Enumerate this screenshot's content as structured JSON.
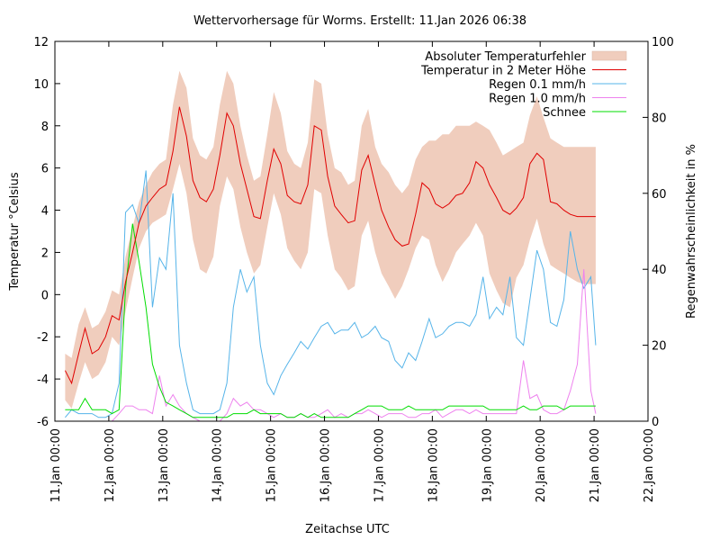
{
  "chart_data": {
    "type": "line",
    "title": "Wettervorhersage für Worms. Erstellt: 11.Jan 2026 06:38",
    "xlabel": "Zeitachse UTC",
    "ylabel": "Temperatur °Celsius",
    "y2label": "Regenwahrscheinlichkeit in %",
    "x_unit": "days since 11.Jan 00:00",
    "xlim": [
      0,
      11
    ],
    "ylim": [
      -6,
      12
    ],
    "y2lim": [
      0,
      100
    ],
    "xticks": [
      {
        "value": 0,
        "label": "11.Jan 00:00"
      },
      {
        "value": 1,
        "label": "12.Jan 00:00"
      },
      {
        "value": 2,
        "label": "13.Jan 00:00"
      },
      {
        "value": 3,
        "label": "14.Jan 00:00"
      },
      {
        "value": 4,
        "label": "15.Jan 00:00"
      },
      {
        "value": 5,
        "label": "16.Jan 00:00"
      },
      {
        "value": 6,
        "label": "17.Jan 00:00"
      },
      {
        "value": 7,
        "label": "18.Jan 00:00"
      },
      {
        "value": 8,
        "label": "19.Jan 00:00"
      },
      {
        "value": 9,
        "label": "20.Jan 00:00"
      },
      {
        "value": 10,
        "label": "21.Jan 00:00"
      },
      {
        "value": 11,
        "label": "22.Jan 00:00"
      }
    ],
    "yticks": [
      -6,
      -4,
      -2,
      0,
      2,
      4,
      6,
      8,
      10,
      12
    ],
    "y2ticks": [
      0,
      20,
      40,
      60,
      80,
      100
    ],
    "grid": false,
    "legend_position": "top-right",
    "legend": [
      {
        "label": "Absoluter Temperaturfehler",
        "kind": "band",
        "color": "#f0cdbd"
      },
      {
        "label": "Temperatur in 2 Meter Höhe",
        "kind": "line",
        "color": "#e00000"
      },
      {
        "label": "Regen 0.1 mm/h",
        "kind": "line",
        "color": "#56b4e9"
      },
      {
        "label": "Regen 1.0 mm/h",
        "kind": "line",
        "color": "#ee82ee"
      },
      {
        "label": "Schnee",
        "kind": "line",
        "color": "#00dd00"
      }
    ],
    "x": [
      0.19,
      0.31,
      0.44,
      0.56,
      0.69,
      0.81,
      0.94,
      1.06,
      1.19,
      1.31,
      1.44,
      1.56,
      1.69,
      1.81,
      1.94,
      2.06,
      2.19,
      2.31,
      2.44,
      2.56,
      2.69,
      2.81,
      2.94,
      3.06,
      3.19,
      3.31,
      3.44,
      3.56,
      3.69,
      3.81,
      3.94,
      4.06,
      4.19,
      4.31,
      4.44,
      4.56,
      4.69,
      4.81,
      4.94,
      5.06,
      5.19,
      5.31,
      5.44,
      5.56,
      5.69,
      5.81,
      5.94,
      6.06,
      6.19,
      6.31,
      6.44,
      6.56,
      6.69,
      6.81,
      6.94,
      7.06,
      7.19,
      7.31,
      7.44,
      7.56,
      7.69,
      7.81,
      7.94,
      8.06,
      8.19,
      8.31,
      8.44,
      8.56,
      8.69,
      8.81,
      8.94,
      9.06,
      9.19,
      9.31,
      9.44,
      9.56,
      9.69,
      9.81,
      9.94,
      10.03
    ],
    "series": [
      {
        "name": "Temperatur in 2 Meter Höhe",
        "axis": "y",
        "color": "#e00000",
        "values": [
          -3.6,
          -4.2,
          -2.8,
          -1.6,
          -2.8,
          -2.6,
          -2.0,
          -1.0,
          -1.2,
          0.6,
          2.0,
          3.4,
          4.2,
          4.6,
          5.0,
          5.2,
          6.8,
          8.9,
          7.5,
          5.4,
          4.6,
          4.4,
          5.0,
          6.6,
          8.6,
          8.0,
          6.2,
          5.0,
          3.7,
          3.6,
          5.4,
          6.9,
          6.2,
          4.7,
          4.4,
          4.3,
          5.2,
          8.0,
          7.8,
          5.6,
          4.2,
          3.8,
          3.4,
          3.5,
          5.9,
          6.6,
          5.2,
          4.0,
          3.2,
          2.6,
          2.3,
          2.4,
          3.8,
          5.3,
          5.0,
          4.3,
          4.1,
          4.3,
          4.7,
          4.8,
          5.3,
          6.3,
          6.0,
          5.2,
          4.6,
          4.0,
          3.8,
          4.1,
          4.6,
          6.2,
          6.7,
          6.4,
          4.4,
          4.3,
          4.0,
          3.8,
          3.7,
          3.7,
          3.7,
          3.7
        ]
      },
      {
        "name": "Absoluter Temperaturfehler (untere Grenze)",
        "axis": "y",
        "color": "#f0cdbd",
        "values": [
          -5.0,
          -5.4,
          -4.2,
          -3.2,
          -4.0,
          -3.8,
          -3.2,
          -2.0,
          -2.4,
          -0.8,
          0.8,
          2.2,
          3.0,
          3.4,
          3.6,
          3.8,
          5.0,
          6.2,
          4.8,
          2.6,
          1.2,
          1.0,
          1.8,
          4.2,
          5.6,
          5.0,
          3.2,
          2.0,
          1.0,
          1.4,
          3.2,
          4.8,
          3.8,
          2.2,
          1.6,
          1.2,
          2.0,
          5.0,
          4.8,
          2.8,
          1.2,
          0.8,
          0.2,
          0.4,
          2.8,
          3.5,
          2.0,
          1.0,
          0.4,
          -0.2,
          0.4,
          1.2,
          2.2,
          2.8,
          2.6,
          1.4,
          0.6,
          1.2,
          2.0,
          2.4,
          2.8,
          3.4,
          2.8,
          1.0,
          0.2,
          -0.4,
          -0.6,
          0.8,
          1.4,
          2.6,
          3.6,
          2.4,
          1.4,
          1.2,
          1.0,
          0.8,
          0.6,
          0.5,
          0.5,
          0.5
        ]
      },
      {
        "name": "Absoluter Temperaturfehler (obere Grenze)",
        "axis": "y",
        "color": "#f0cdbd",
        "values": [
          -2.8,
          -3.0,
          -1.4,
          -0.6,
          -1.6,
          -1.4,
          -0.8,
          0.2,
          0.0,
          1.8,
          3.2,
          4.4,
          5.2,
          5.8,
          6.2,
          6.4,
          9.0,
          10.6,
          9.8,
          7.4,
          6.6,
          6.4,
          7.0,
          9.0,
          10.6,
          10.0,
          8.0,
          6.6,
          5.4,
          5.6,
          7.6,
          9.6,
          8.6,
          6.8,
          6.2,
          6.0,
          7.2,
          10.2,
          10.0,
          7.6,
          6.0,
          5.8,
          5.2,
          5.4,
          8.0,
          8.8,
          7.0,
          6.2,
          5.8,
          5.2,
          4.8,
          5.2,
          6.4,
          7.0,
          7.3,
          7.3,
          7.6,
          7.6,
          8.0,
          8.0,
          8.0,
          8.2,
          8.0,
          7.8,
          7.2,
          6.6,
          6.8,
          7.0,
          7.2,
          8.5,
          9.4,
          8.4,
          7.4,
          7.2,
          7.0,
          7.0,
          7.0,
          7.0,
          7.0,
          7.0
        ]
      },
      {
        "name": "Regen 0.1 mm/h",
        "axis": "y2",
        "color": "#56b4e9",
        "values": [
          1,
          3,
          2,
          2,
          2,
          1,
          1,
          2,
          10,
          55,
          57,
          52,
          66,
          30,
          43,
          40,
          60,
          20,
          10,
          3,
          2,
          2,
          2,
          3,
          10,
          30,
          40,
          34,
          38,
          20,
          10,
          7,
          12,
          15,
          18,
          21,
          19,
          22,
          25,
          26,
          23,
          24,
          24,
          26,
          22,
          23,
          25,
          22,
          21,
          16,
          14,
          18,
          16,
          21,
          27,
          22,
          23,
          25,
          26,
          26,
          25,
          28,
          38,
          27,
          30,
          28,
          38,
          22,
          20,
          32,
          45,
          40,
          26,
          25,
          32,
          50,
          40,
          35,
          38,
          20
        ]
      },
      {
        "name": "Regen 1.0 mm/h",
        "axis": "y2",
        "color": "#ee82ee",
        "values": [
          0,
          0,
          0,
          0,
          0,
          0,
          0,
          0,
          2,
          4,
          4,
          3,
          3,
          2,
          12,
          4,
          7,
          4,
          2,
          1,
          0,
          0,
          0,
          0,
          2,
          6,
          4,
          5,
          3,
          3,
          2,
          1,
          2,
          1,
          1,
          2,
          1,
          1,
          2,
          3,
          1,
          2,
          1,
          2,
          2,
          3,
          2,
          1,
          2,
          2,
          2,
          1,
          1,
          2,
          2,
          3,
          1,
          2,
          3,
          3,
          2,
          3,
          2,
          2,
          2,
          2,
          2,
          2,
          16,
          6,
          7,
          3,
          2,
          2,
          3,
          8,
          15,
          40,
          8,
          2
        ]
      },
      {
        "name": "Schnee",
        "axis": "y2",
        "color": "#00dd00",
        "values": [
          3,
          3,
          3,
          6,
          3,
          3,
          3,
          2,
          3,
          35,
          52,
          42,
          30,
          15,
          9,
          5,
          4,
          3,
          2,
          1,
          1,
          1,
          1,
          1,
          1,
          2,
          2,
          2,
          3,
          2,
          2,
          2,
          2,
          1,
          1,
          2,
          1,
          2,
          1,
          1,
          1,
          1,
          1,
          2,
          3,
          4,
          4,
          4,
          3,
          3,
          3,
          4,
          3,
          3,
          3,
          3,
          3,
          4,
          4,
          4,
          4,
          4,
          4,
          3,
          3,
          3,
          3,
          3,
          4,
          3,
          3,
          4,
          4,
          4,
          3,
          4,
          4,
          4,
          4,
          4
        ]
      }
    ]
  }
}
